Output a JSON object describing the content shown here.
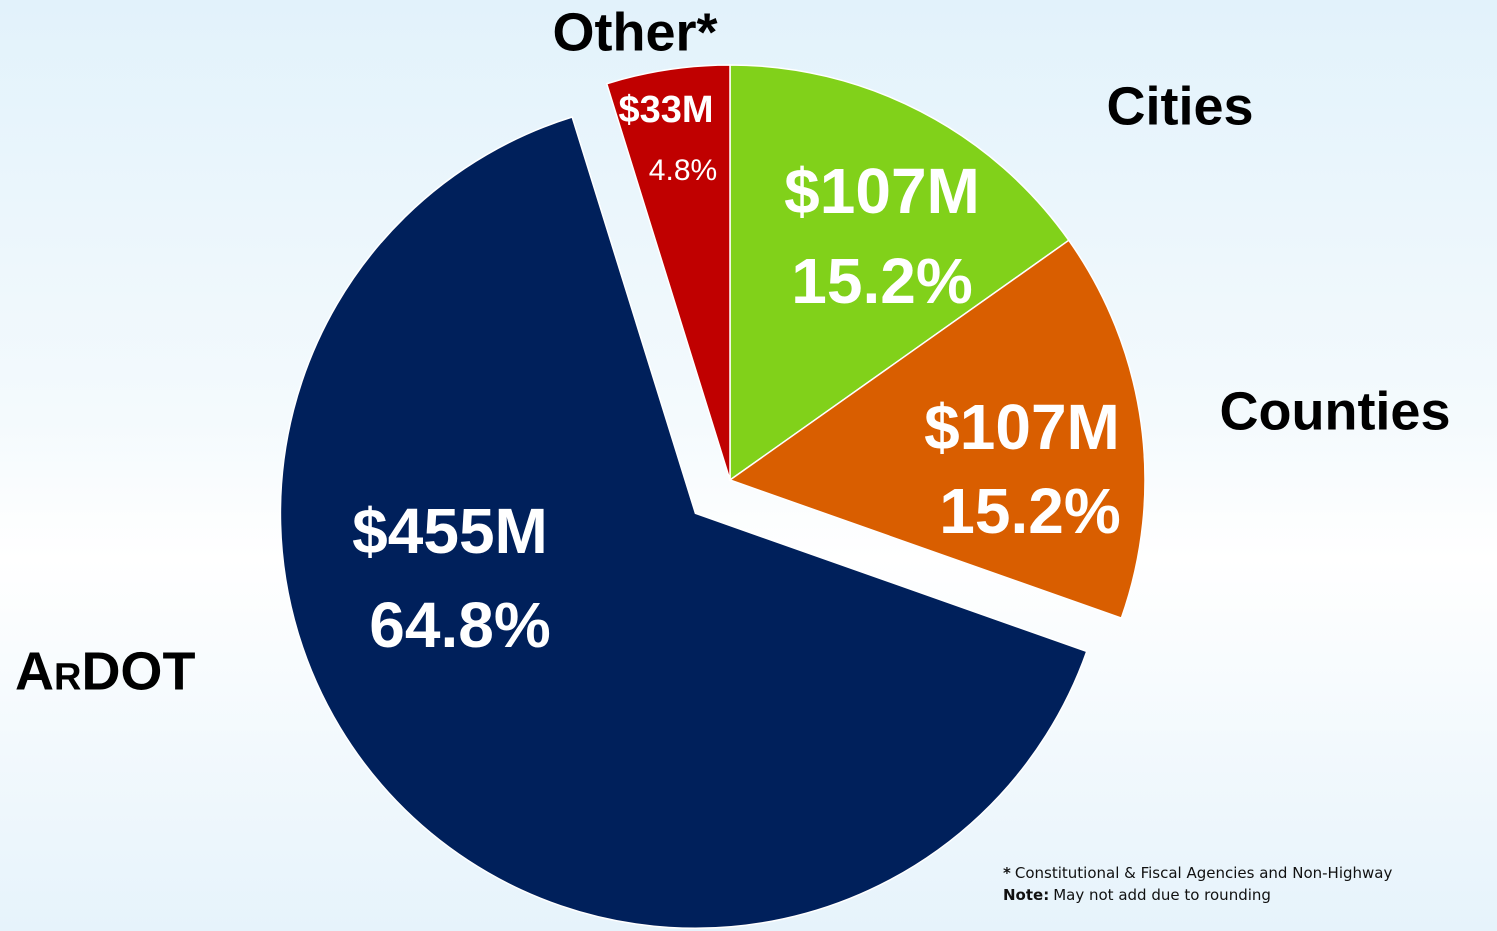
{
  "chart_data": {
    "type": "pie",
    "categories": [
      "Cities",
      "Counties",
      "ArDOT",
      "Other*"
    ],
    "values": [
      15.2,
      15.2,
      64.8,
      4.8
    ],
    "value_labels": [
      "15.2%",
      "15.2%",
      "64.8%",
      "4.8%"
    ],
    "amounts": [
      107,
      107,
      455,
      33
    ],
    "amount_labels": [
      "$107M",
      "$107M",
      "$455M",
      "$33M"
    ],
    "colors": [
      "#81d11a",
      "#d95e00",
      "#00205b",
      "#c00000"
    ],
    "footnotes": [
      {
        "lead": "*",
        "text": "Constitutional & Fiscal Agencies and Non-Highway"
      },
      {
        "lead": "Note:",
        "text": "May not add due to rounding"
      }
    ]
  }
}
